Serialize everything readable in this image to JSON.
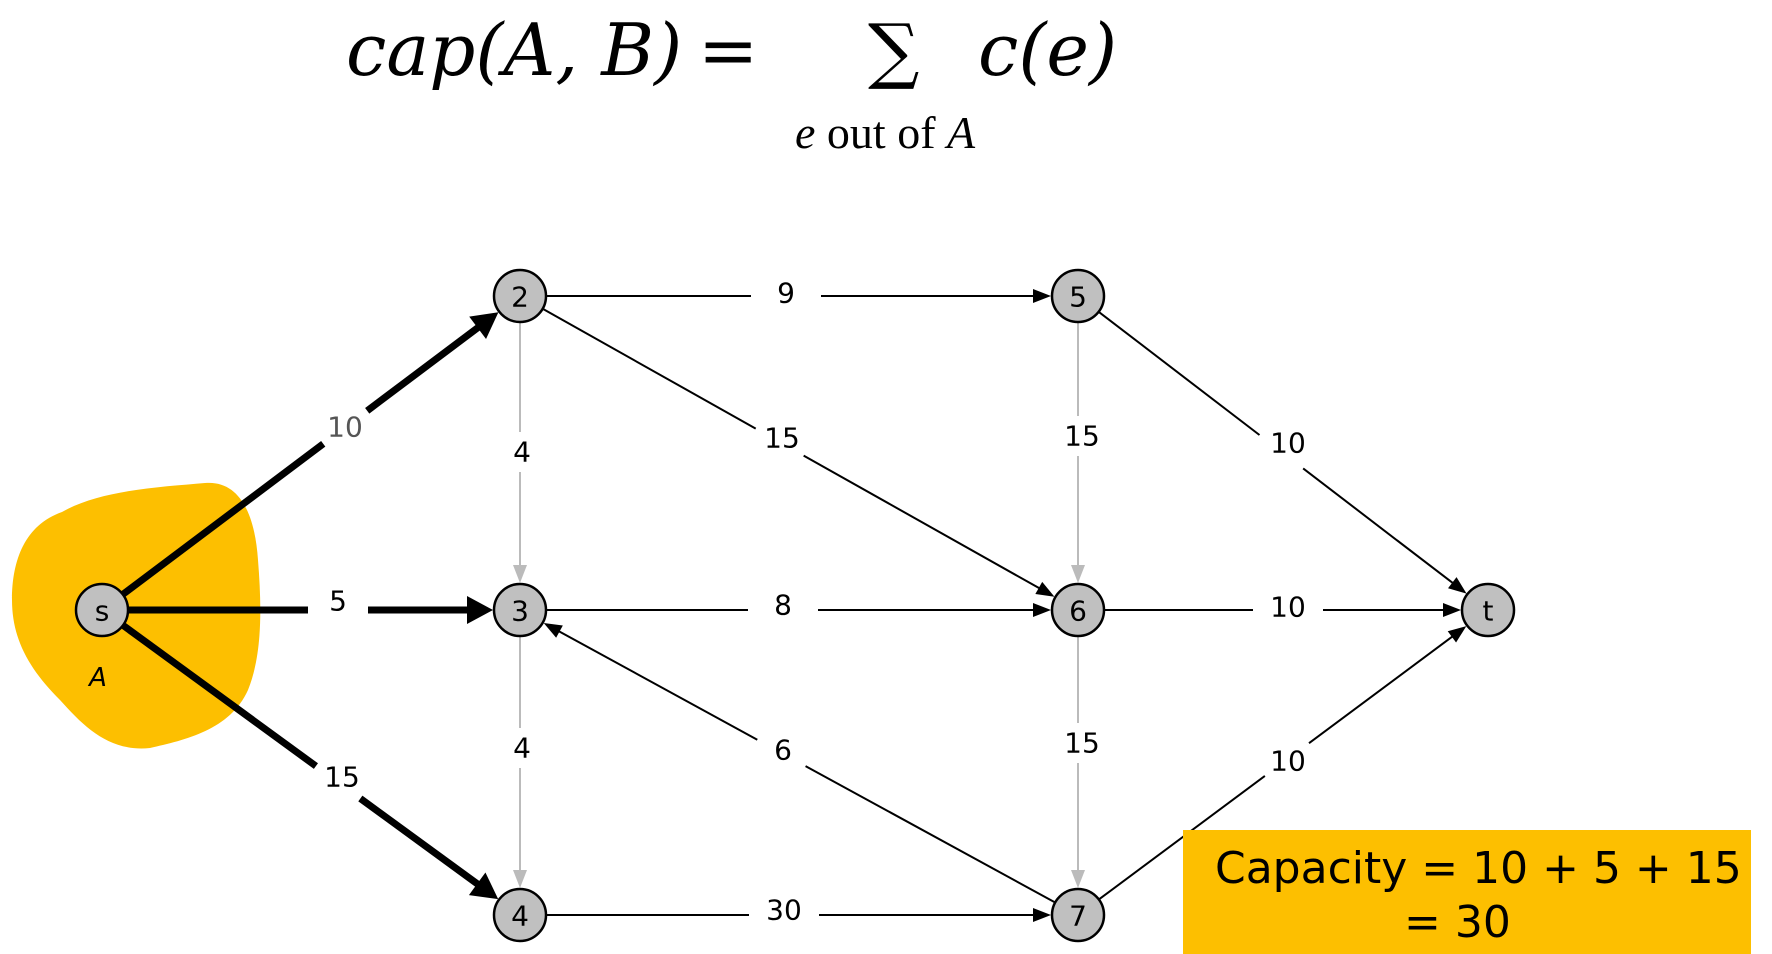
{
  "formula": {
    "lhs": "cap(A, B)",
    "eq": "=",
    "sigma": "∑",
    "rhs": "c(e)",
    "sub_var": "e",
    "sub_text": " out of ",
    "sub_set": "A"
  },
  "set_label": "A",
  "nodes": [
    {
      "id": "s",
      "label": "s"
    },
    {
      "id": "2",
      "label": "2"
    },
    {
      "id": "3",
      "label": "3"
    },
    {
      "id": "4",
      "label": "4"
    },
    {
      "id": "5",
      "label": "5"
    },
    {
      "id": "6",
      "label": "6"
    },
    {
      "id": "7",
      "label": "7"
    },
    {
      "id": "t",
      "label": "t"
    }
  ],
  "edges": [
    {
      "from": "s",
      "to": "2",
      "capacity": "10",
      "style": "cut"
    },
    {
      "from": "s",
      "to": "3",
      "capacity": "5",
      "style": "cut"
    },
    {
      "from": "s",
      "to": "4",
      "capacity": "15",
      "style": "cut"
    },
    {
      "from": "2",
      "to": "5",
      "capacity": "9",
      "style": "normal"
    },
    {
      "from": "2",
      "to": "6",
      "capacity": "15",
      "style": "normal"
    },
    {
      "from": "2",
      "to": "3",
      "capacity": "4",
      "style": "light"
    },
    {
      "from": "3",
      "to": "6",
      "capacity": "8",
      "style": "normal"
    },
    {
      "from": "3",
      "to": "4",
      "capacity": "4",
      "style": "light"
    },
    {
      "from": "4",
      "to": "7",
      "capacity": "30",
      "style": "normal"
    },
    {
      "from": "7",
      "to": "3",
      "capacity": "6",
      "style": "normal"
    },
    {
      "from": "5",
      "to": "6",
      "capacity": "15",
      "style": "light"
    },
    {
      "from": "6",
      "to": "7",
      "capacity": "15",
      "style": "light"
    },
    {
      "from": "5",
      "to": "t",
      "capacity": "10",
      "style": "normal"
    },
    {
      "from": "6",
      "to": "t",
      "capacity": "10",
      "style": "normal"
    },
    {
      "from": "7",
      "to": "t",
      "capacity": "10",
      "style": "normal"
    }
  ],
  "capacity_box": {
    "line1": "Capacity = 10 + 5 + 15",
    "line2": "= 30"
  },
  "colors": {
    "highlight": "#fdbf00",
    "node_fill": "#c0c0c0",
    "light_edge": "#bbbbbb"
  }
}
